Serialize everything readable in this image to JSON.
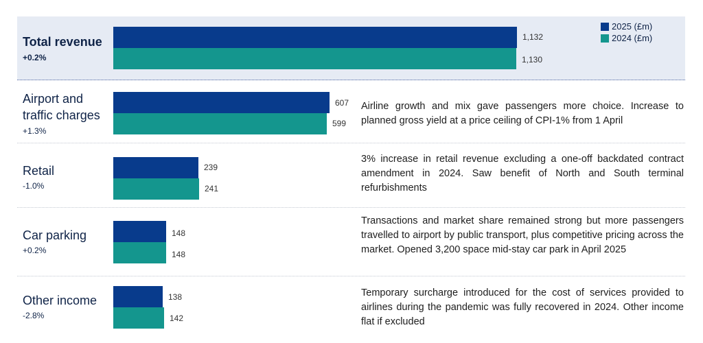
{
  "legend": {
    "y2025": "2025 (£m)",
    "y2024": "2024 (£m)",
    "color_2025": "#083b8c",
    "color_2024": "#14968e"
  },
  "chart_data": {
    "type": "bar",
    "orientation": "horizontal",
    "categories": [
      "Total revenue",
      "Airport and traffic charges",
      "Retail",
      "Car parking",
      "Other income"
    ],
    "series": [
      {
        "name": "2025 (£m)",
        "values": [
          1132,
          607,
          239,
          148,
          138
        ]
      },
      {
        "name": "2024 (£m)",
        "values": [
          1130,
          599,
          241,
          148,
          142
        ]
      }
    ],
    "value_labels": {
      "y2025": [
        "1,132",
        "607",
        "239",
        "148",
        "138"
      ],
      "y2024": [
        "1,130",
        "599",
        "241",
        "148",
        "142"
      ]
    },
    "changes": [
      "+0.2%",
      "+1.3%",
      "-1.0%",
      "+0.2%",
      "-2.8%"
    ],
    "notes": [
      "",
      "Airline growth and mix gave passengers more choice. Increase to planned gross yield at a price ceiling of CPI-1% from 1 April",
      "3% increase in retail revenue excluding a one-off backdated contract amendment in 2024. Saw benefit of North and South terminal refurbishments",
      "Transactions and market share remained strong but more passengers travelled to airport by public transport, plus competitive pricing across the market. Opened 3,200 space mid-stay car park in April 2025",
      "Temporary surcharge introduced for the cost of services provided to airlines during the pandemic was fully recovered in 2024. Other income flat if excluded"
    ],
    "legend_position": "top-right",
    "grid": false
  },
  "labels": {
    "total": "Total revenue",
    "airport": "Airport and traffic charges",
    "retail": "Retail",
    "parking": "Car parking",
    "other": "Other income"
  }
}
